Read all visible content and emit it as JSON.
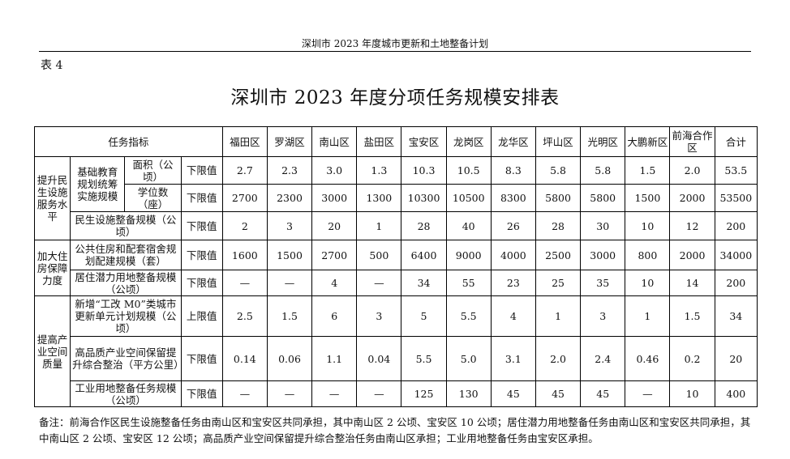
{
  "page": {
    "running_header": "深圳市 2023 年度城市更新和土地整备计划",
    "table_label": "表 4",
    "title": "深圳市 2023 年度分项任务规模安排表"
  },
  "table": {
    "header": {
      "indicator": "任务指标",
      "districts": [
        "福田区",
        "罗湖区",
        "南山区",
        "盐田区",
        "宝安区",
        "龙岗区",
        "龙华区",
        "坪山区",
        "光明区",
        "大鹏新区",
        "前海合作区",
        "合计"
      ]
    },
    "groups": {
      "g1": "提升民生设施服务水平",
      "g2": "加大住房保障力度",
      "g3": "提高产业空间质量"
    },
    "sub": {
      "edu": "基础教育规划统筹实施规模"
    },
    "rows": [
      {
        "item": "面积（公顷）",
        "limit": "下限值",
        "values": [
          "2.7",
          "2.3",
          "3.0",
          "1.3",
          "10.3",
          "10.5",
          "8.3",
          "5.8",
          "5.8",
          "1.5",
          "2.0",
          "53.5"
        ]
      },
      {
        "item": "学位数（座）",
        "limit": "下限值",
        "values": [
          "2700",
          "2300",
          "3000",
          "1300",
          "10300",
          "10500",
          "8300",
          "5800",
          "5800",
          "1500",
          "2000",
          "53500"
        ]
      },
      {
        "item": "民生设施整备规模（公顷）",
        "limit": "下限值",
        "values": [
          "2",
          "3",
          "20",
          "1",
          "28",
          "40",
          "26",
          "28",
          "30",
          "10",
          "12",
          "200"
        ]
      },
      {
        "item": "公共住房和配套宿舍规划配建规模（套）",
        "limit": "下限值",
        "values": [
          "1600",
          "1500",
          "2700",
          "500",
          "6400",
          "9000",
          "4000",
          "2500",
          "3000",
          "800",
          "2000",
          "34000"
        ]
      },
      {
        "item": "居住潜力用地整备规模（公顷）",
        "limit": "下限值",
        "values": [
          "—",
          "—",
          "4",
          "—",
          "34",
          "55",
          "23",
          "25",
          "35",
          "10",
          "14",
          "200"
        ]
      },
      {
        "item": "新增“工改 M0”类城市更新单元计划规模（公顷）",
        "limit": "上限值",
        "values": [
          "2.5",
          "1.5",
          "6",
          "3",
          "5",
          "5.5",
          "4",
          "1",
          "3",
          "1",
          "1.5",
          "34"
        ]
      },
      {
        "item": "高品质产业空间保留提升综合整治（平方公里）",
        "limit": "下限值",
        "values": [
          "0.14",
          "0.06",
          "1.1",
          "0.04",
          "5.5",
          "5.0",
          "3.1",
          "2.0",
          "2.4",
          "0.46",
          "0.2",
          "20"
        ]
      },
      {
        "item": "工业用地整备任务规模（公顷）",
        "limit": "下限值",
        "values": [
          "—",
          "—",
          "—",
          "—",
          "125",
          "130",
          "45",
          "45",
          "45",
          "—",
          "10",
          "400"
        ]
      }
    ]
  },
  "note": "备注：前海合作区民生设施整备任务由南山区和宝安区共同承担，其中南山区 2 公顷、宝安区 10 公顷；居住潜力用地整备任务由南山区和宝安区共同承担，其中南山区 2 公顷、宝安区 12 公顷；高品质产业空间保留提升综合整治任务由南山区承担；工业用地整备任务由宝安区承担。"
}
